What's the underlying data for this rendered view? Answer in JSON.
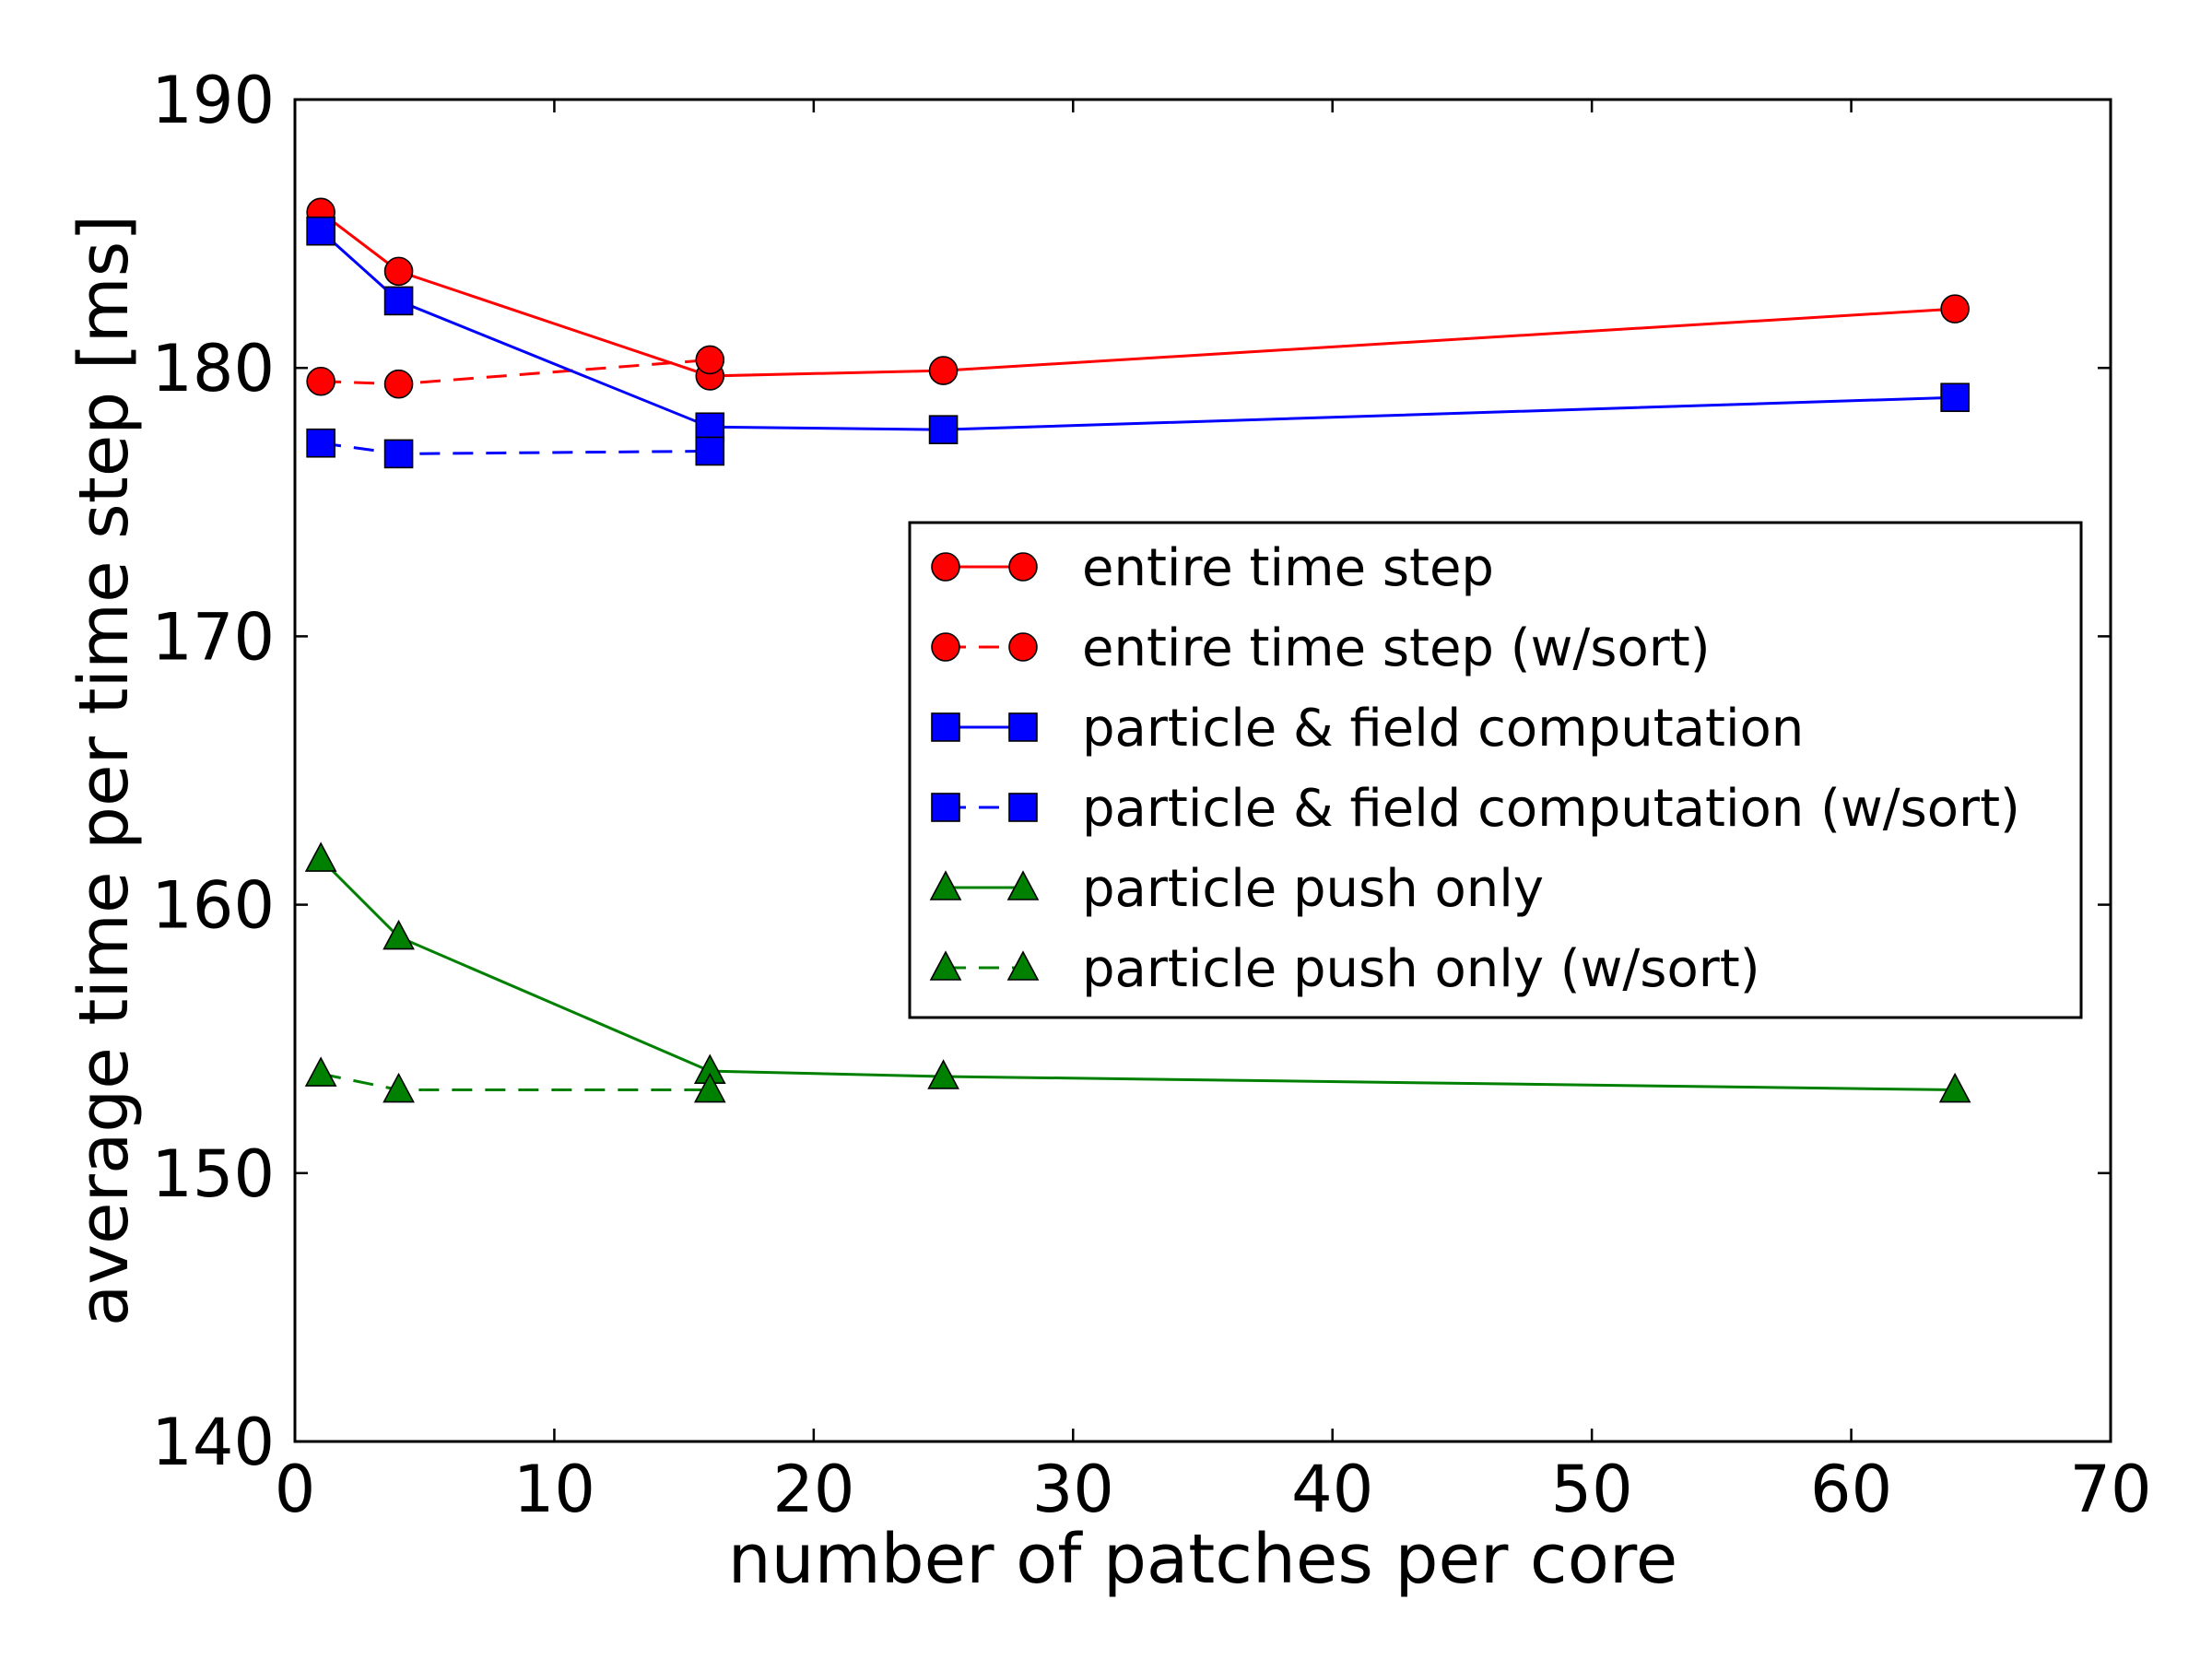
{
  "chart_data": {
    "type": "line",
    "title": "",
    "xlabel": "number of patches per core",
    "ylabel": "average time per time step [ms]",
    "xlim": [
      0,
      70
    ],
    "ylim": [
      140,
      190
    ],
    "xticks": [
      0,
      10,
      20,
      30,
      40,
      50,
      60,
      70
    ],
    "yticks": [
      140,
      150,
      160,
      170,
      180,
      190
    ],
    "x_tick_labels": [
      "0",
      "10",
      "20",
      "30",
      "40",
      "50",
      "60",
      "70"
    ],
    "y_tick_labels": [
      "140",
      "150",
      "160",
      "170",
      "180",
      "190"
    ],
    "grid": false,
    "legend_position": "center-right",
    "series": [
      {
        "name": "entire time step",
        "color": "#ff0000",
        "line_color": "#ff0000",
        "marker": "circle",
        "linestyle": "solid",
        "x": [
          1,
          4,
          16,
          25,
          64
        ],
        "values": [
          185.8,
          183.6,
          179.7,
          179.9,
          182.2
        ]
      },
      {
        "name": "entire time step (w/sort)",
        "color": "#ff0000",
        "line_color": "#ff0000",
        "marker": "circle",
        "linestyle": "dashed",
        "x": [
          1,
          4,
          16
        ],
        "values": [
          179.5,
          179.4,
          180.3
        ]
      },
      {
        "name": "particle & field computation",
        "color": "#0000ff",
        "line_color": "#0000ff",
        "marker": "square",
        "linestyle": "solid",
        "x": [
          1,
          4,
          16,
          25,
          64
        ],
        "values": [
          185.1,
          182.5,
          177.8,
          177.7,
          178.9
        ]
      },
      {
        "name": "particle & field computation (w/sort)",
        "color": "#0000ff",
        "line_color": "#0000ff",
        "marker": "square",
        "linestyle": "dashed",
        "x": [
          1,
          4,
          16
        ],
        "values": [
          177.2,
          176.8,
          176.9
        ]
      },
      {
        "name": "particle push only",
        "color": "#008000",
        "line_color": "#008000",
        "marker": "triangle",
        "linestyle": "solid",
        "x": [
          1,
          4,
          16,
          25,
          64
        ],
        "values": [
          161.7,
          158.8,
          153.8,
          153.6,
          153.1
        ]
      },
      {
        "name": "particle push only (w/sort)",
        "color": "#008000",
        "line_color": "#008000",
        "marker": "triangle",
        "linestyle": "dashed",
        "x": [
          1,
          4,
          16
        ],
        "values": [
          153.7,
          153.1,
          153.1
        ]
      }
    ]
  }
}
